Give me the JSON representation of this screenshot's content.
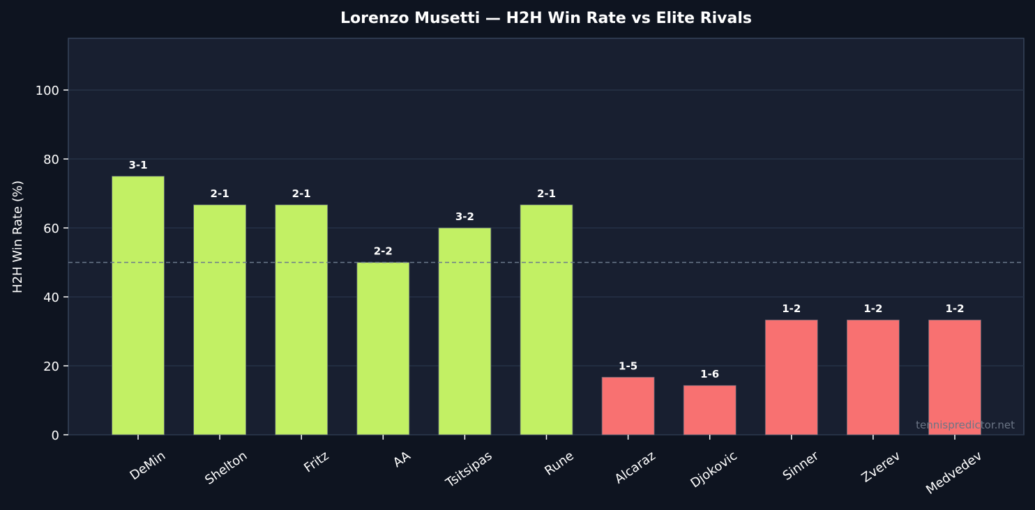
{
  "chart_data": {
    "type": "bar",
    "title": "Lorenzo Musetti — H2H Win Rate vs Elite Rivals",
    "xlabel": "",
    "ylabel": "H2H Win Rate (%)",
    "ylim": [
      0,
      115
    ],
    "yticks": [
      0,
      20,
      40,
      60,
      80,
      100
    ],
    "reference_line": 50,
    "grid": true,
    "categories": [
      "DeMin",
      "Shelton",
      "Fritz",
      "AA",
      "Tsitsipas",
      "Rune",
      "Alcaraz",
      "Djokovic",
      "Sinner",
      "Zverev",
      "Medvedev"
    ],
    "values": [
      75.0,
      66.7,
      66.7,
      50.0,
      60.0,
      66.7,
      16.7,
      14.3,
      33.3,
      33.3,
      33.3
    ],
    "data_labels": [
      "3-1",
      "2-1",
      "2-1",
      "2-2",
      "3-2",
      "2-1",
      "1-5",
      "1-6",
      "1-2",
      "1-2",
      "1-2"
    ],
    "watermark": "tennispredictor.net"
  },
  "colors": {
    "background": "#0e1420",
    "plot_bg": "#181f30",
    "win_bar": "#c2f064",
    "loss_bar": "#f87171",
    "grid": "#263246",
    "reference": "#6b7a8c"
  }
}
